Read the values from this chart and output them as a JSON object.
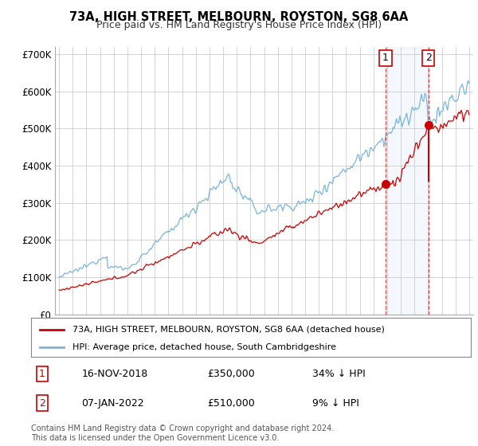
{
  "title": "73A, HIGH STREET, MELBOURN, ROYSTON, SG8 6AA",
  "subtitle": "Price paid vs. HM Land Registry's House Price Index (HPI)",
  "legend_line1": "73A, HIGH STREET, MELBOURN, ROYSTON, SG8 6AA (detached house)",
  "legend_line2": "HPI: Average price, detached house, South Cambridgeshire",
  "annotation1_date": "16-NOV-2018",
  "annotation1_price": "£350,000",
  "annotation1_hpi": "34% ↓ HPI",
  "annotation2_date": "07-JAN-2022",
  "annotation2_price": "£510,000",
  "annotation2_hpi": "9% ↓ HPI",
  "footer": "Contains HM Land Registry data © Crown copyright and database right 2024.\nThis data is licensed under the Open Government Licence v3.0.",
  "hpi_color": "#7ab5d9",
  "price_color": "#cc0000",
  "background_color": "#ffffff",
  "plot_bg_color": "#ffffff",
  "grid_color": "#cccccc",
  "ylim": [
    0,
    720000
  ],
  "yticks": [
    0,
    100000,
    200000,
    300000,
    400000,
    500000,
    600000,
    700000
  ],
  "xstart_year": 1995,
  "xend_year": 2025,
  "sale1_year": 2018.88,
  "sale1_price": 350000,
  "sale2_year": 2022.02,
  "sale2_price": 510000
}
